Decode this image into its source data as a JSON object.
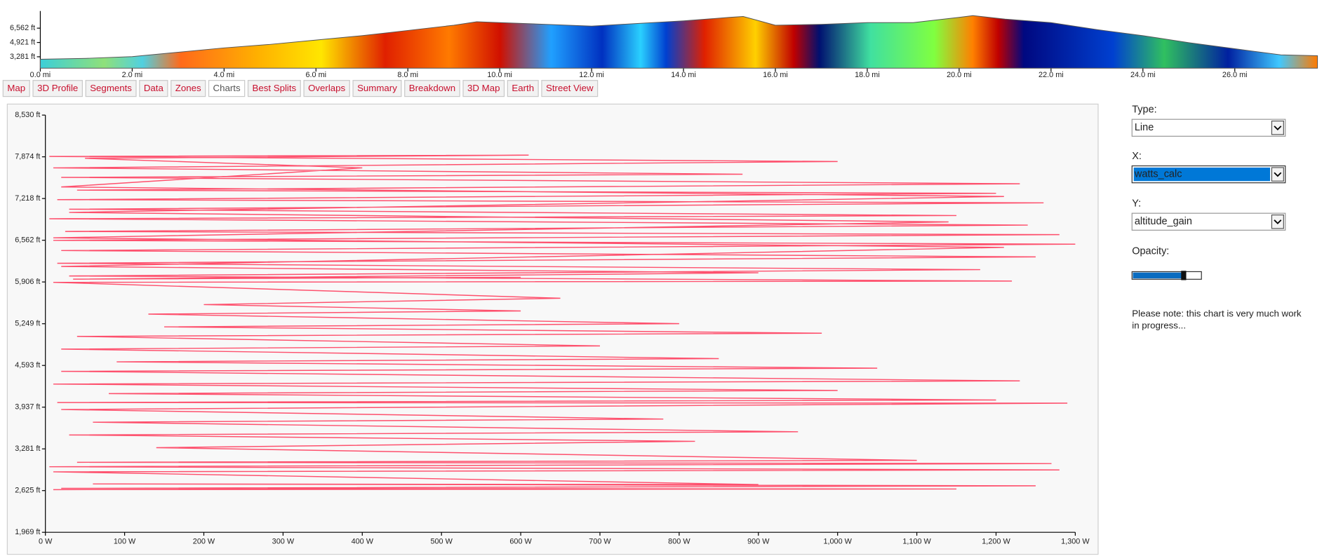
{
  "chart_data": [
    {
      "type": "area",
      "x": [
        0,
        1,
        2,
        3,
        4,
        5,
        6,
        7,
        8,
        9,
        9.5,
        10,
        11,
        12,
        13,
        14,
        15,
        15.3,
        16,
        17,
        18,
        19,
        20,
        20.3,
        21,
        22,
        23,
        24,
        25,
        26,
        27,
        27.8
      ],
      "values": [
        3000,
        3100,
        3300,
        3800,
        4300,
        4700,
        5200,
        5700,
        6300,
        6900,
        7300,
        7200,
        7000,
        6800,
        7100,
        7400,
        7800,
        7900,
        6900,
        7000,
        7200,
        7200,
        7800,
        8000,
        7600,
        7200,
        6400,
        5700,
        4900,
        4200,
        3500,
        3400
      ],
      "xlim": [
        0,
        27.8
      ],
      "ylim": [
        1969,
        8530
      ],
      "xticks": [
        {
          "value": 0,
          "label": "0.0 mi"
        },
        {
          "value": 2,
          "label": "2.0 mi"
        },
        {
          "value": 4,
          "label": "4.0 mi"
        },
        {
          "value": 6,
          "label": "6.0 mi"
        },
        {
          "value": 8,
          "label": "8.0 mi"
        },
        {
          "value": 10,
          "label": "10.0 mi"
        },
        {
          "value": 12,
          "label": "12.0 mi"
        },
        {
          "value": 14,
          "label": "14.0 mi"
        },
        {
          "value": 16,
          "label": "16.0 mi"
        },
        {
          "value": 18,
          "label": "18.0 mi"
        },
        {
          "value": 20,
          "label": "20.0 mi"
        },
        {
          "value": 22,
          "label": "22.0 mi"
        },
        {
          "value": 24,
          "label": "24.0 mi"
        },
        {
          "value": 26,
          "label": "26.0 mi"
        }
      ],
      "yticks": [
        {
          "value": 3281,
          "label": "3,281 ft"
        },
        {
          "value": 4921,
          "label": "4,921 ft"
        },
        {
          "value": 6562,
          "label": "6,562 ft"
        }
      ]
    },
    {
      "type": "line",
      "color": "#ff3355",
      "x": [
        10,
        1150,
        20,
        1250,
        60,
        900,
        10,
        1280,
        5,
        1270,
        40,
        1100,
        140,
        820,
        30,
        950,
        60,
        780,
        20,
        1290,
        15,
        1200,
        80,
        1000,
        10,
        1230,
        20,
        1050,
        90,
        850,
        20,
        700,
        40,
        980,
        150,
        800,
        130,
        600,
        200,
        650,
        10,
        1220,
        30,
        1180,
        15,
        1250,
        20,
        1300,
        10,
        1280,
        25,
        1240,
        5,
        1150,
        30,
        1260,
        15,
        1200,
        40,
        1230,
        20,
        880,
        10,
        1000,
        5,
        610,
        50,
        400,
        20,
        1210,
        30,
        1140,
        10,
        1210,
        20,
        900,
        35,
        600
      ],
      "values": [
        2640,
        2650,
        2660,
        2700,
        2730,
        2720,
        2920,
        2950,
        3000,
        3050,
        3070,
        3100,
        3300,
        3400,
        3500,
        3550,
        3700,
        3750,
        3900,
        4000,
        4010,
        4050,
        4150,
        4200,
        4300,
        4350,
        4500,
        4550,
        4650,
        4700,
        4850,
        4900,
        5050,
        5100,
        5200,
        5250,
        5400,
        5450,
        5550,
        5650,
        5900,
        5920,
        6000,
        6100,
        6200,
        6300,
        6400,
        6500,
        6560,
        6650,
        6700,
        6800,
        6900,
        6950,
        7050,
        7150,
        7200,
        7300,
        7350,
        7450,
        7550,
        7600,
        7700,
        7800,
        7880,
        7900,
        7850,
        7700,
        7400,
        7250,
        7000,
        6850,
        6600,
        6450,
        6150,
        6050,
        5950,
        5980
      ],
      "xlim": [
        0,
        1300
      ],
      "ylim": [
        1969,
        8530
      ],
      "xticks": [
        {
          "value": 0,
          "label": "0 W"
        },
        {
          "value": 100,
          "label": "100 W"
        },
        {
          "value": 200,
          "label": "200 W"
        },
        {
          "value": 300,
          "label": "300 W"
        },
        {
          "value": 400,
          "label": "400 W"
        },
        {
          "value": 500,
          "label": "500 W"
        },
        {
          "value": 600,
          "label": "600 W"
        },
        {
          "value": 700,
          "label": "700 W"
        },
        {
          "value": 800,
          "label": "800 W"
        },
        {
          "value": 900,
          "label": "900 W"
        },
        {
          "value": 1000,
          "label": "1,000 W"
        },
        {
          "value": 1100,
          "label": "1,100 W"
        },
        {
          "value": 1200,
          "label": "1,200 W"
        },
        {
          "value": 1300,
          "label": "1,300 W"
        }
      ],
      "yticks": [
        {
          "value": 1969,
          "label": "1,969 ft"
        },
        {
          "value": 2625,
          "label": "2,625 ft"
        },
        {
          "value": 3281,
          "label": "3,281 ft"
        },
        {
          "value": 3937,
          "label": "3,937 ft"
        },
        {
          "value": 4593,
          "label": "4,593 ft"
        },
        {
          "value": 5249,
          "label": "5,249 ft"
        },
        {
          "value": 5906,
          "label": "5,906 ft"
        },
        {
          "value": 6562,
          "label": "6,562 ft"
        },
        {
          "value": 7218,
          "label": "7,218 ft"
        },
        {
          "value": 7874,
          "label": "7,874 ft"
        },
        {
          "value": 8530,
          "label": "8,530 ft"
        }
      ]
    }
  ],
  "tabs": [
    "Map",
    "3D Profile",
    "Segments",
    "Data",
    "Zones",
    "Charts",
    "Best Splits",
    "Overlaps",
    "Summary",
    "Breakdown",
    "3D Map",
    "Earth",
    "Street View"
  ],
  "controls": {
    "type_label": "Type:",
    "type_value": "Line",
    "x_label": "X:",
    "x_value": "watts_calc",
    "y_label": "Y:",
    "y_value": "altitude_gain",
    "opacity_label": "Opacity:",
    "opacity": 0.75,
    "note": "Please note: this chart is very much work in progress..."
  }
}
